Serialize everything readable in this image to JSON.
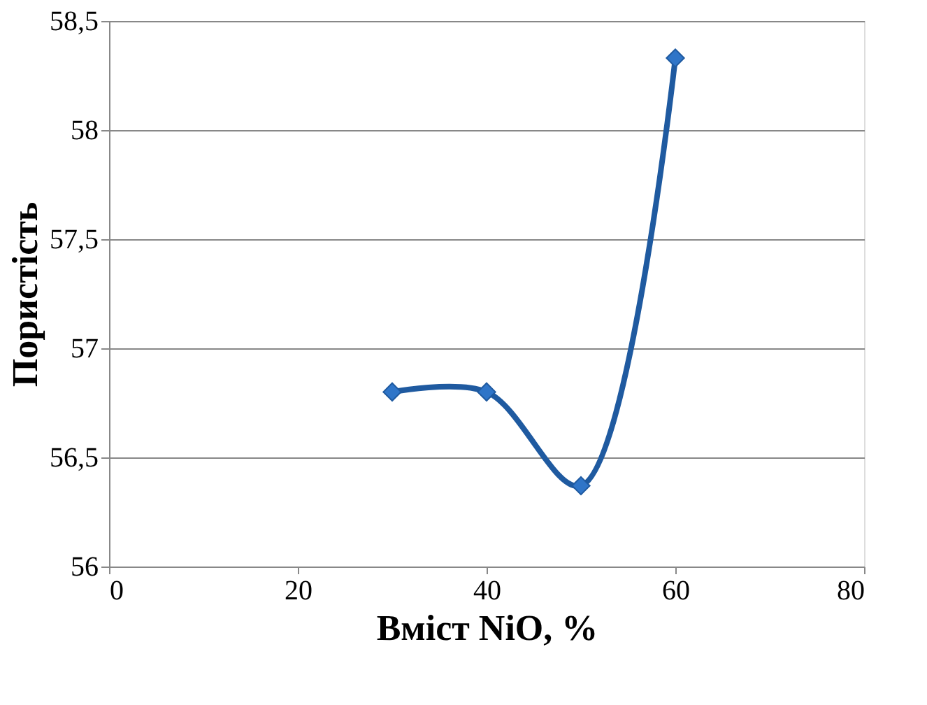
{
  "chart_data": {
    "type": "line",
    "xlabel": "Вміст NiO, %",
    "ylabel": "Пористість",
    "xlim": [
      0,
      80
    ],
    "xticks": [
      0,
      20,
      40,
      60,
      80
    ],
    "ylim": [
      56,
      58.5
    ],
    "yticks": [
      56,
      {
        "value": 56.5,
        "label": "56,5"
      },
      57,
      {
        "value": 57.5,
        "label": "57,5"
      },
      58,
      {
        "value": 58.5,
        "label": "58,5"
      }
    ],
    "grid": "y",
    "marker": "diamond",
    "line_style": "solid",
    "series": [
      {
        "color": "#1f5aa0",
        "x": [
          30,
          40,
          50,
          60
        ],
        "values": [
          56.8,
          56.8,
          56.37,
          58.33
        ]
      }
    ]
  }
}
